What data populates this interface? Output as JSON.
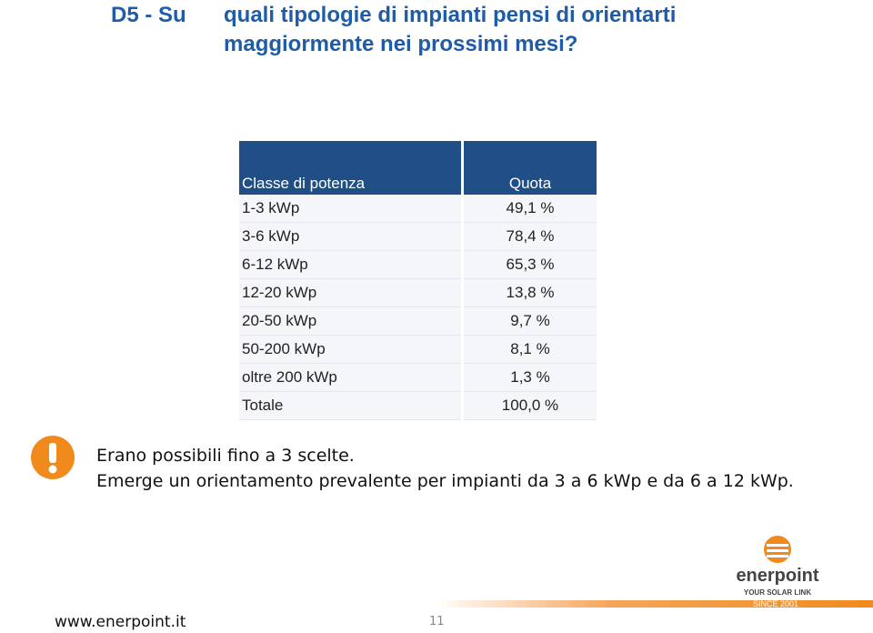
{
  "header": {
    "code": "D5 - Su",
    "title_lines": [
      "quali tipologie di impianti pensi di orientarti",
      "maggiormente nei prossimi mesi?"
    ]
  },
  "table": {
    "columns": [
      "Classe di potenza",
      "Quota"
    ],
    "rows": [
      [
        "1-3 kWp",
        "49,1 %"
      ],
      [
        "3-6 kWp",
        "78,4 %"
      ],
      [
        "6-12 kWp",
        "65,3 %"
      ],
      [
        "12-20 kWp",
        "13,8 %"
      ],
      [
        "20-50 kWp",
        "9,7 %"
      ],
      [
        "50-200 kWp",
        "8,1 %"
      ],
      [
        "oltre 200 kWp",
        "1,3 %"
      ],
      [
        "Totale",
        "100,0 %"
      ]
    ]
  },
  "notes": [
    "Erano possibili fino a 3 scelte.",
    "Emerge un orientamento prevalente per impianti da 3 a 6 kWp e da 6 a 12 kWp."
  ],
  "logo": {
    "name": "enerpoint",
    "tagline": "YOUR SOLAR LINK",
    "since": "SINCE 2001"
  },
  "footer": {
    "url": "www.enerpoint.it",
    "page": "11"
  }
}
